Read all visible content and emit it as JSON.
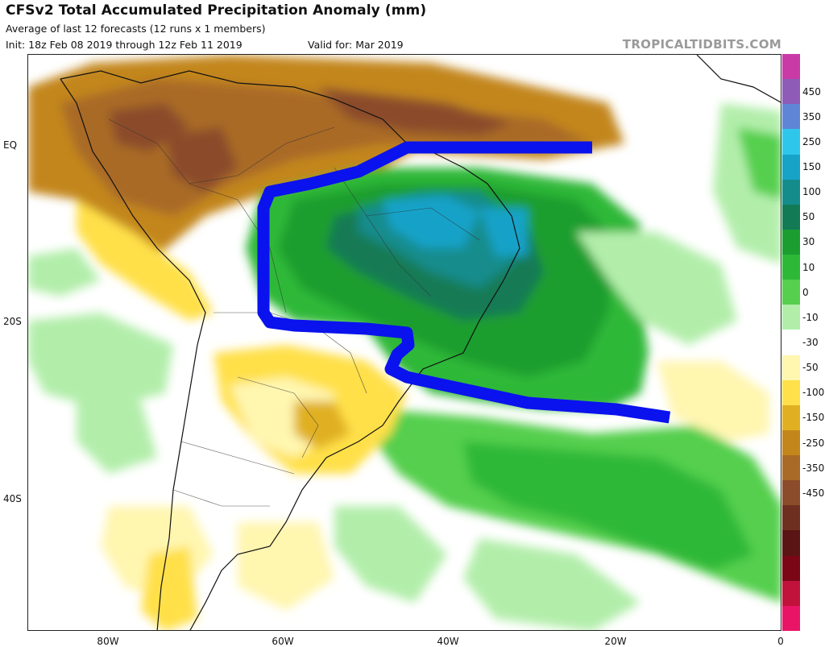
{
  "header": {
    "title": "CFSv2 Total Accumulated Precipitation Anomaly (mm)",
    "subtitle": "Average of last 12 forecasts (12 runs x 1 members)",
    "init": "Init: 18z Feb 08 2019 through 12z Feb 11 2019",
    "valid": "Valid for: Mar 2019"
  },
  "brand": "TROPICALTIDBITS.COM",
  "axes": {
    "lat_labels": [
      "EQ",
      "20S",
      "40S"
    ],
    "lon_labels": [
      "80W",
      "60W",
      "40W",
      "20W",
      "0"
    ]
  },
  "colorbar": {
    "labels": [
      "450",
      "350",
      "250",
      "150",
      "100",
      "50",
      "30",
      "10",
      "0",
      "-10",
      "-30",
      "-50",
      "-100",
      "-150",
      "-250",
      "-350",
      "-450"
    ],
    "colors": [
      "#c93aa6",
      "#8e5bb7",
      "#5f86d6",
      "#2fc6ec",
      "#17a2c8",
      "#158c8c",
      "#127a55",
      "#1b9e2f",
      "#2db838",
      "#55cf4d",
      "#b2eeaa",
      "#ffffff",
      "#fff6b0",
      "#ffe04a",
      "#e0b022",
      "#c3861b",
      "#a96a27",
      "#8b4c2b",
      "#6f2f20",
      "#5a1414",
      "#7a0616",
      "#c0123a",
      "#ea1466"
    ]
  },
  "annotation": {
    "shape": "blue highlighted region outline over Brazil and South Atlantic",
    "color": "#0a12ee"
  }
}
